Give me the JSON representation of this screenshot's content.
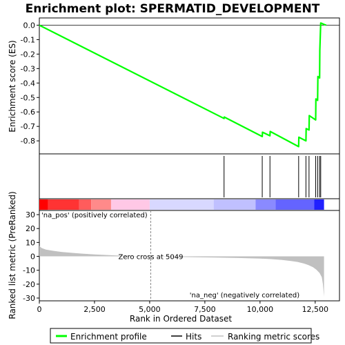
{
  "chart_data": {
    "type": "line",
    "title": "Enrichment plot: SPERMATID_DEVELOPMENT",
    "es_panel": {
      "ylabel": "Enrichment score (ES)",
      "ylim": [
        -0.89,
        0.05
      ],
      "yticks": [
        0.0,
        -0.1,
        -0.2,
        -0.3,
        -0.4,
        -0.5,
        -0.6,
        -0.7,
        -0.8
      ],
      "ytick_labels": [
        "0.0",
        "-0.1",
        "-0.2",
        "-0.3",
        "-0.4",
        "-0.5",
        "-0.6",
        "-0.7",
        "-0.8"
      ],
      "series": [
        {
          "name": "Enrichment profile",
          "color": "#00ff00",
          "x": [
            0,
            8370,
            8380,
            10100,
            10110,
            10450,
            10460,
            11750,
            11760,
            12080,
            12090,
            12220,
            12230,
            12520,
            12530,
            12610,
            12620,
            12700,
            12710,
            12750,
            12900,
            13000
          ],
          "y": [
            0.0,
            -0.645,
            -0.635,
            -0.77,
            -0.74,
            -0.765,
            -0.735,
            -0.84,
            -0.775,
            -0.8,
            -0.715,
            -0.725,
            -0.625,
            -0.655,
            -0.51,
            -0.52,
            -0.355,
            -0.365,
            -0.175,
            0.015,
            0.005,
            0.0
          ]
        }
      ]
    },
    "hits": {
      "color": "#000000",
      "positions": [
        8370,
        10100,
        10450,
        11750,
        12080,
        12220,
        12520,
        12610,
        12700,
        12750
      ]
    },
    "heatmap_bar": {
      "segments": [
        {
          "from": 0,
          "to": 400,
          "color": "#ff0000"
        },
        {
          "from": 400,
          "to": 1800,
          "color": "#ff3333"
        },
        {
          "from": 1800,
          "to": 2350,
          "color": "#ff5c5c"
        },
        {
          "from": 2350,
          "to": 3250,
          "color": "#ff8a8a"
        },
        {
          "from": 3250,
          "to": 5000,
          "color": "#ffc8e6"
        },
        {
          "from": 5000,
          "to": 7900,
          "color": "#d8d8ff"
        },
        {
          "from": 7900,
          "to": 9800,
          "color": "#c0c0ff"
        },
        {
          "from": 9800,
          "to": 10700,
          "color": "#8a8aff"
        },
        {
          "from": 10700,
          "to": 12450,
          "color": "#6464ff"
        },
        {
          "from": 12450,
          "to": 12900,
          "color": "#2020ff"
        }
      ]
    },
    "metric_panel": {
      "ylabel": "Ranked list metric (PreRanked)",
      "xlabel": "Rank in Ordered Dataset",
      "ylim": [
        -32,
        33
      ],
      "yticks": [
        30,
        20,
        10,
        0,
        -10,
        -20,
        -30
      ],
      "ytick_labels": [
        "30",
        "20",
        "10",
        "0",
        "-10",
        "-20",
        "-30"
      ],
      "color": "#c0c0c0",
      "x": [
        0,
        100,
        300,
        600,
        1000,
        1500,
        2000,
        2500,
        3000,
        3500,
        4000,
        4500,
        5049,
        6000,
        7000,
        8000,
        9000,
        10000,
        10500,
        11000,
        11400,
        11700,
        12000,
        12200,
        12400,
        12550,
        12700,
        12800,
        12850,
        12900
      ],
      "y": [
        7.5,
        6.0,
        4.8,
        4.0,
        3.2,
        2.5,
        1.9,
        1.4,
        1.0,
        0.6,
        0.3,
        0.15,
        0.0,
        -0.3,
        -0.6,
        -0.9,
        -1.2,
        -1.6,
        -2.0,
        -2.6,
        -3.3,
        -4.0,
        -5.2,
        -6.3,
        -7.8,
        -9.5,
        -12.0,
        -15.0,
        -20.0,
        -29.0
      ],
      "zero_cross_label": "Zero cross at 5049",
      "zero_cross_x": 5049,
      "pos_label": "'na_pos' (positively correlated)",
      "neg_label": "'na_neg' (negatively correlated)",
      "pos_color": "#ff0000",
      "neg_color": "#0000ff"
    },
    "xaxis": {
      "xlim": [
        0,
        13600
      ],
      "xticks": [
        0,
        2500,
        5000,
        7500,
        10000,
        12500
      ],
      "xtick_labels": [
        "0",
        "2,500",
        "5,000",
        "7,500",
        "10,000",
        "12,500"
      ]
    },
    "legend": {
      "placement": "bottom",
      "items": [
        {
          "label": "Enrichment profile",
          "color": "#00ff00"
        },
        {
          "label": "Hits",
          "color": "#000000"
        },
        {
          "label": "Ranking metric scores",
          "color": "#c0c0c0"
        }
      ]
    }
  }
}
